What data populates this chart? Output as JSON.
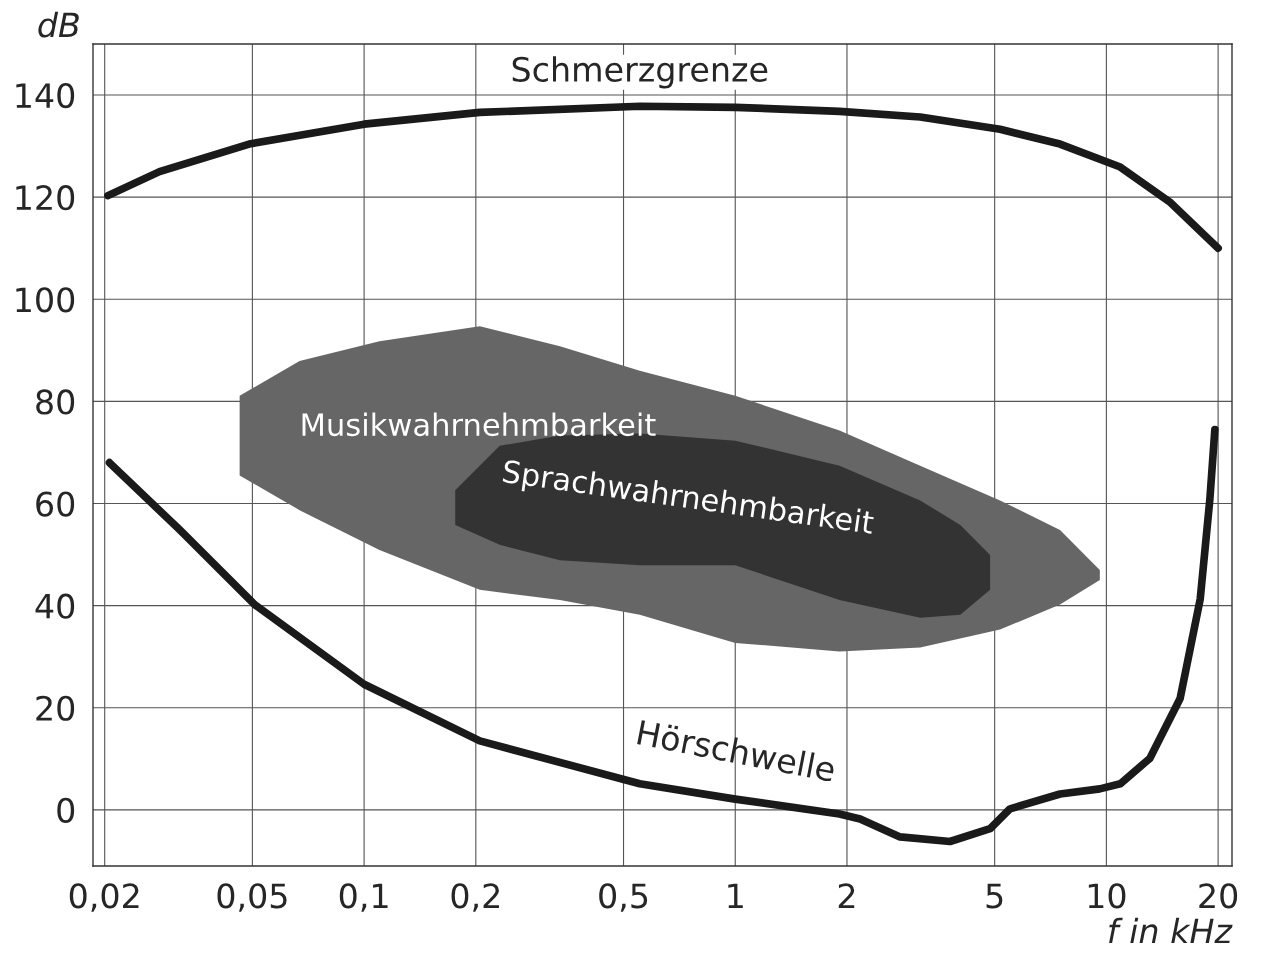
{
  "chart_data": {
    "type": "line",
    "xlabel": "f in kHz",
    "ylabel": "dB",
    "log": "x",
    "grid": true,
    "legend": false,
    "marker": "none",
    "line_style": "solid",
    "xlim": [
      0.0186,
      21.8
    ],
    "ylim": [
      -11,
      150
    ],
    "xticks": [
      {
        "value": 0.02,
        "label": "0,02"
      },
      {
        "value": 0.05,
        "label": "0,05"
      },
      {
        "value": 0.1,
        "label": "0,1"
      },
      {
        "value": 0.2,
        "label": "0,2"
      },
      {
        "value": 0.5,
        "label": "0,5"
      },
      1,
      2,
      5,
      10,
      20
    ],
    "yticks": [
      0,
      20,
      40,
      60,
      80,
      100,
      120,
      140
    ],
    "series": [
      {
        "name": "Musikwahrnehmbarkeit",
        "type": "area",
        "color": "#666666",
        "x": [
          0.0462,
          0.067,
          0.11,
          0.205,
          0.337,
          0.553,
          1,
          1.91,
          3.15,
          5.17,
          7.5,
          9.6,
          9.6,
          7.5,
          5.17,
          3.15,
          1.91,
          1,
          0.553,
          0.337,
          0.205,
          0.11,
          0.067,
          0.0462
        ],
        "values": [
          81.1,
          87.9,
          91.8,
          94.7,
          90.8,
          86.0,
          81.1,
          74.3,
          67.4,
          60.6,
          54.8,
          47.0,
          45.0,
          40.2,
          35.3,
          31.8,
          31.0,
          32.7,
          38.2,
          41.1,
          43.1,
          50.9,
          58.7,
          65.5
        ]
      },
      {
        "name": "Sprachwahrnehmbarkeit",
        "type": "area",
        "color": "#333333",
        "x": [
          0.176,
          0.232,
          0.337,
          0.553,
          1,
          1.91,
          3.15,
          4.04,
          4.86,
          4.86,
          4.04,
          3.15,
          1.91,
          1,
          0.553,
          0.337,
          0.232,
          0.176
        ],
        "values": [
          62.6,
          71.3,
          73.3,
          73.7,
          72.3,
          67.4,
          60.6,
          55.8,
          49.9,
          43.1,
          38.2,
          37.6,
          41.1,
          47.9,
          47.9,
          48.9,
          51.9,
          55.8
        ]
      },
      {
        "name": "Schmerzgrenze",
        "color": "#1a1a1a",
        "x": [
          0.0204,
          0.0281,
          0.049,
          0.1,
          0.205,
          0.553,
          1,
          1.91,
          3.15,
          5.17,
          7.5,
          10.9,
          14.8,
          20
        ],
        "values": [
          120.3,
          125,
          130.4,
          134.3,
          136.6,
          137.8,
          137.6,
          136.8,
          135.7,
          133.3,
          130.4,
          125.9,
          119.1,
          110
        ]
      },
      {
        "name": "Hörschwelle",
        "color": "#1a1a1a",
        "x": [
          0.0206,
          0.0319,
          0.0507,
          0.1,
          0.205,
          0.553,
          1,
          1.91,
          2.17,
          2.78,
          3.79,
          4.86,
          5.5,
          7.5,
          9.6,
          10.9,
          13.1,
          15.8,
          17.9,
          19.0,
          19.6
        ],
        "values": [
          68.0,
          54.8,
          40.2,
          24.6,
          13.5,
          5.1,
          2.1,
          -0.8,
          -1.8,
          -5.3,
          -6.2,
          -3.7,
          0.2,
          3.1,
          4.1,
          5.1,
          10.1,
          21.8,
          41.3,
          60.8,
          74.5
        ]
      }
    ]
  }
}
